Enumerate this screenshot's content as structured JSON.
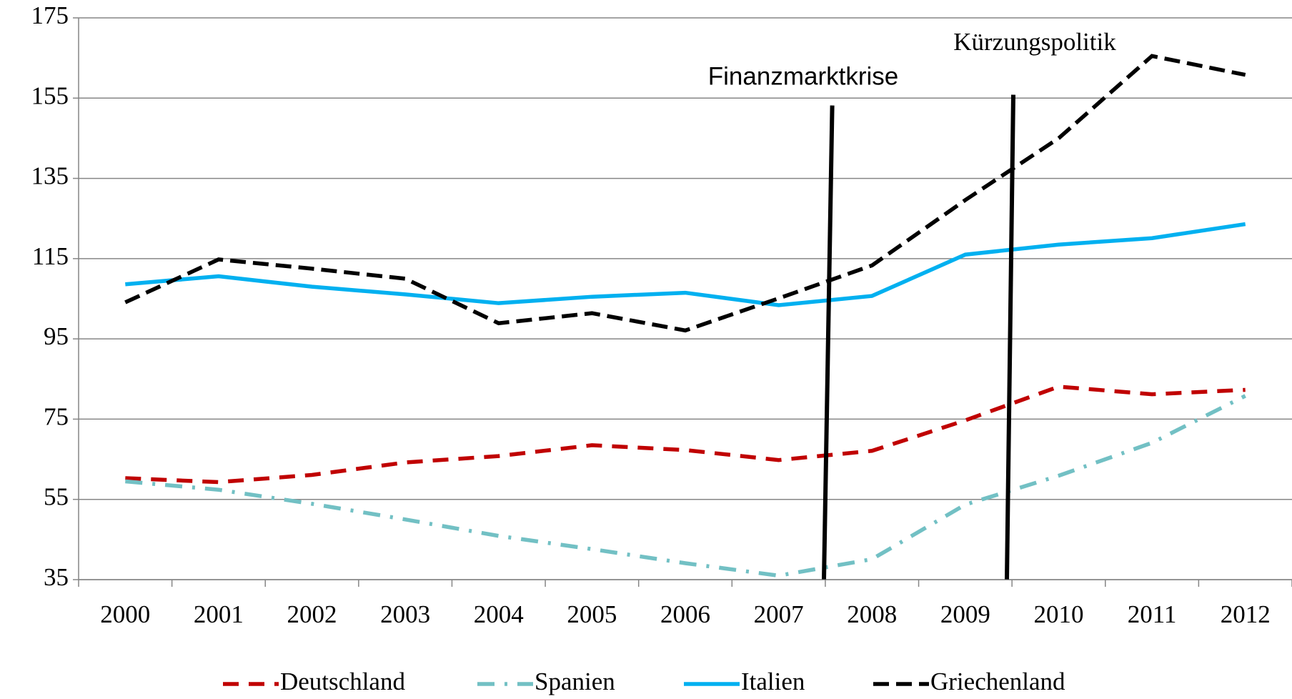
{
  "chart_data": {
    "type": "line",
    "categories": [
      "2000",
      "2001",
      "2002",
      "2003",
      "2004",
      "2005",
      "2006",
      "2007",
      "2008",
      "2009",
      "2010",
      "2011",
      "2012"
    ],
    "series": [
      {
        "name": "Deutschland",
        "color": "#c00000",
        "values": [
          60.3,
          59.3,
          61.1,
          64.2,
          65.8,
          68.5,
          67.3,
          64.8,
          67.1,
          74.7,
          83.1,
          81.2,
          82.3
        ]
      },
      {
        "name": "Spanien",
        "color": "#72c0c4",
        "values": [
          59.5,
          57.4,
          53.9,
          50.0,
          45.9,
          42.6,
          39.1,
          36.0,
          40.1,
          53.7,
          60.9,
          69.1,
          80.8
        ]
      },
      {
        "name": "Italien",
        "color": "#00b0f0",
        "values": [
          108.6,
          110.6,
          108.0,
          106.1,
          103.9,
          105.5,
          106.5,
          103.4,
          105.7,
          116.0,
          118.5,
          120.1,
          123.6
        ]
      },
      {
        "name": "Griechenland",
        "color": "#000000",
        "values": [
          104.1,
          114.8,
          112.5,
          110.0,
          98.9,
          101.4,
          97.1,
          105.1,
          113.3,
          129.6,
          145.0,
          165.5,
          160.8
        ]
      }
    ],
    "ylim": [
      35,
      175
    ],
    "yticks": [
      35,
      55,
      75,
      95,
      115,
      135,
      155,
      175
    ],
    "grid": true,
    "annotations": [
      "Finanzmarktkrise",
      "Kürzungspolitik"
    ],
    "legend": "bottom"
  }
}
